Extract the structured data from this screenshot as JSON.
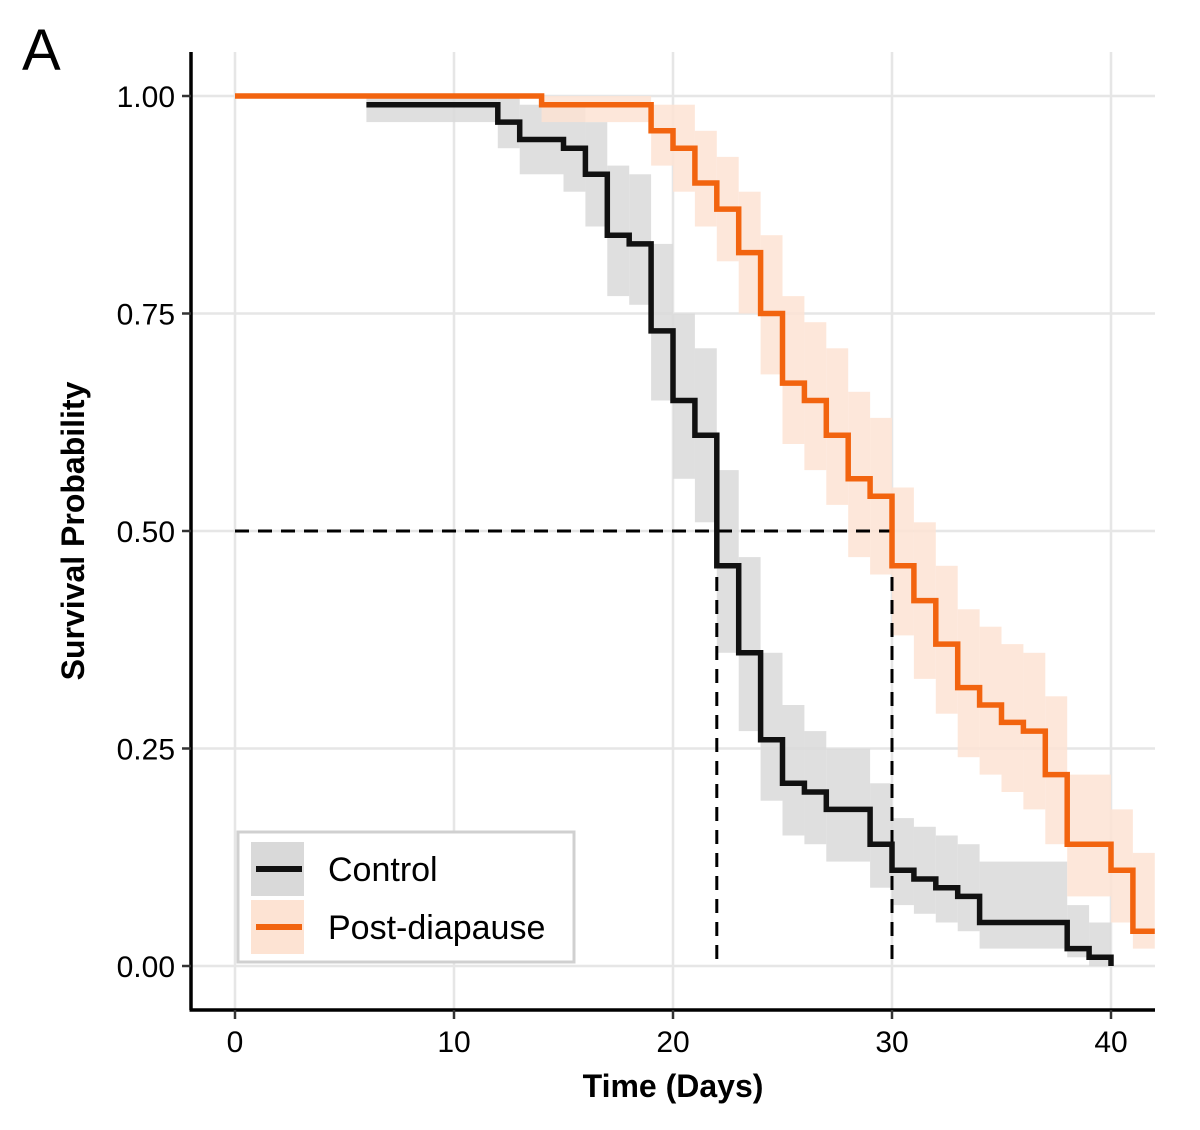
{
  "chart_data": {
    "type": "line",
    "subtype": "kaplan-meier-step",
    "panel_label": "A",
    "title": "",
    "xlabel": "Time (Days)",
    "ylabel": "Survival Probability",
    "xlim": [
      -2,
      42
    ],
    "ylim": [
      -0.05,
      1.05
    ],
    "xticks": [
      0,
      10,
      20,
      30,
      40
    ],
    "xtick_labels": [
      "0",
      "10",
      "20",
      "30",
      "40"
    ],
    "yticks": [
      0,
      0.25,
      0.5,
      0.75,
      1.0
    ],
    "ytick_labels": [
      "0.00",
      "0.25",
      "0.50",
      "0.75",
      "1.00"
    ],
    "grid": true,
    "legend": {
      "position": "bottom-left",
      "entries": [
        "Control",
        "Post-diapause"
      ]
    },
    "median_lines": {
      "y": 0.5,
      "medians": [
        22,
        30
      ],
      "style": "dashed"
    },
    "series": [
      {
        "name": "Control",
        "color": "#111111",
        "ci_color": "#d9d9d9",
        "x": [
          0,
          6,
          12,
          13,
          15,
          16,
          17,
          18,
          19,
          20,
          21,
          22,
          23,
          24,
          25,
          26,
          27,
          29,
          30,
          31,
          32,
          33,
          34,
          38,
          39,
          40
        ],
        "y": [
          1.0,
          0.99,
          0.97,
          0.95,
          0.94,
          0.91,
          0.84,
          0.83,
          0.73,
          0.65,
          0.61,
          0.46,
          0.36,
          0.26,
          0.21,
          0.2,
          0.18,
          0.14,
          0.11,
          0.1,
          0.09,
          0.08,
          0.05,
          0.02,
          0.01,
          0.0
        ],
        "ci_lower": [
          1.0,
          0.97,
          0.94,
          0.91,
          0.89,
          0.85,
          0.77,
          0.76,
          0.65,
          0.56,
          0.51,
          0.36,
          0.27,
          0.19,
          0.15,
          0.14,
          0.12,
          0.09,
          0.07,
          0.06,
          0.05,
          0.04,
          0.02,
          0.01,
          0.0,
          0.0
        ],
        "ci_upper": [
          1.0,
          1.0,
          1.0,
          0.99,
          0.99,
          0.97,
          0.92,
          0.91,
          0.83,
          0.75,
          0.71,
          0.57,
          0.47,
          0.36,
          0.3,
          0.27,
          0.25,
          0.21,
          0.17,
          0.16,
          0.15,
          0.14,
          0.12,
          0.07,
          0.05,
          0.05
        ],
        "start": 6
      },
      {
        "name": "Post-diapause",
        "color": "#f2640f",
        "ci_color": "#fde3d3",
        "x": [
          0,
          14,
          19,
          20,
          21,
          22,
          23,
          24,
          25,
          26,
          27,
          28,
          29,
          30,
          31,
          32,
          33,
          34,
          35,
          36,
          37,
          38,
          40,
          41
        ],
        "y": [
          1.0,
          0.99,
          0.96,
          0.94,
          0.9,
          0.87,
          0.82,
          0.75,
          0.67,
          0.65,
          0.61,
          0.56,
          0.54,
          0.46,
          0.42,
          0.37,
          0.32,
          0.3,
          0.28,
          0.27,
          0.22,
          0.14,
          0.11,
          0.04
        ],
        "ci_lower": [
          1.0,
          0.97,
          0.92,
          0.89,
          0.85,
          0.81,
          0.75,
          0.68,
          0.6,
          0.57,
          0.53,
          0.47,
          0.45,
          0.38,
          0.33,
          0.29,
          0.24,
          0.22,
          0.2,
          0.18,
          0.14,
          0.08,
          0.05,
          0.02
        ],
        "ci_upper": [
          1.0,
          1.0,
          0.99,
          0.99,
          0.96,
          0.93,
          0.89,
          0.84,
          0.77,
          0.74,
          0.71,
          0.66,
          0.63,
          0.55,
          0.51,
          0.46,
          0.41,
          0.39,
          0.37,
          0.36,
          0.31,
          0.22,
          0.18,
          0.13
        ],
        "xend": 42,
        "start": 0
      }
    ]
  }
}
